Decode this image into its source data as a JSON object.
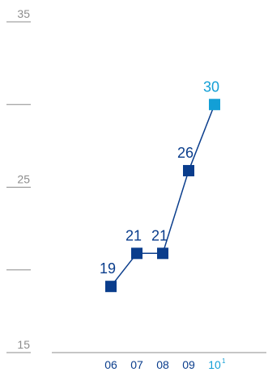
{
  "chart_data": {
    "type": "line",
    "categories": [
      "06",
      "07",
      "08",
      "09",
      "10"
    ],
    "category_footnotes": [
      "",
      "",
      "",
      "",
      "1"
    ],
    "values": [
      19,
      21,
      21,
      26,
      30
    ],
    "data_labels": [
      "19",
      "21",
      "21",
      "26",
      "30"
    ],
    "highlight_index": 4,
    "ylim": [
      15,
      35
    ],
    "yticks": [
      15,
      20,
      25,
      30,
      35
    ],
    "ytick_labels": [
      "15",
      "",
      "25",
      "",
      "35"
    ],
    "grid": false,
    "title": "",
    "xlabel": "",
    "ylabel": "",
    "colors": {
      "series": "#0a3d8c",
      "highlight": "#139fd6",
      "axis": "#8c8c8c",
      "tick_text": "#8c8c8c",
      "xtick_text": "#0a3d8c"
    }
  }
}
